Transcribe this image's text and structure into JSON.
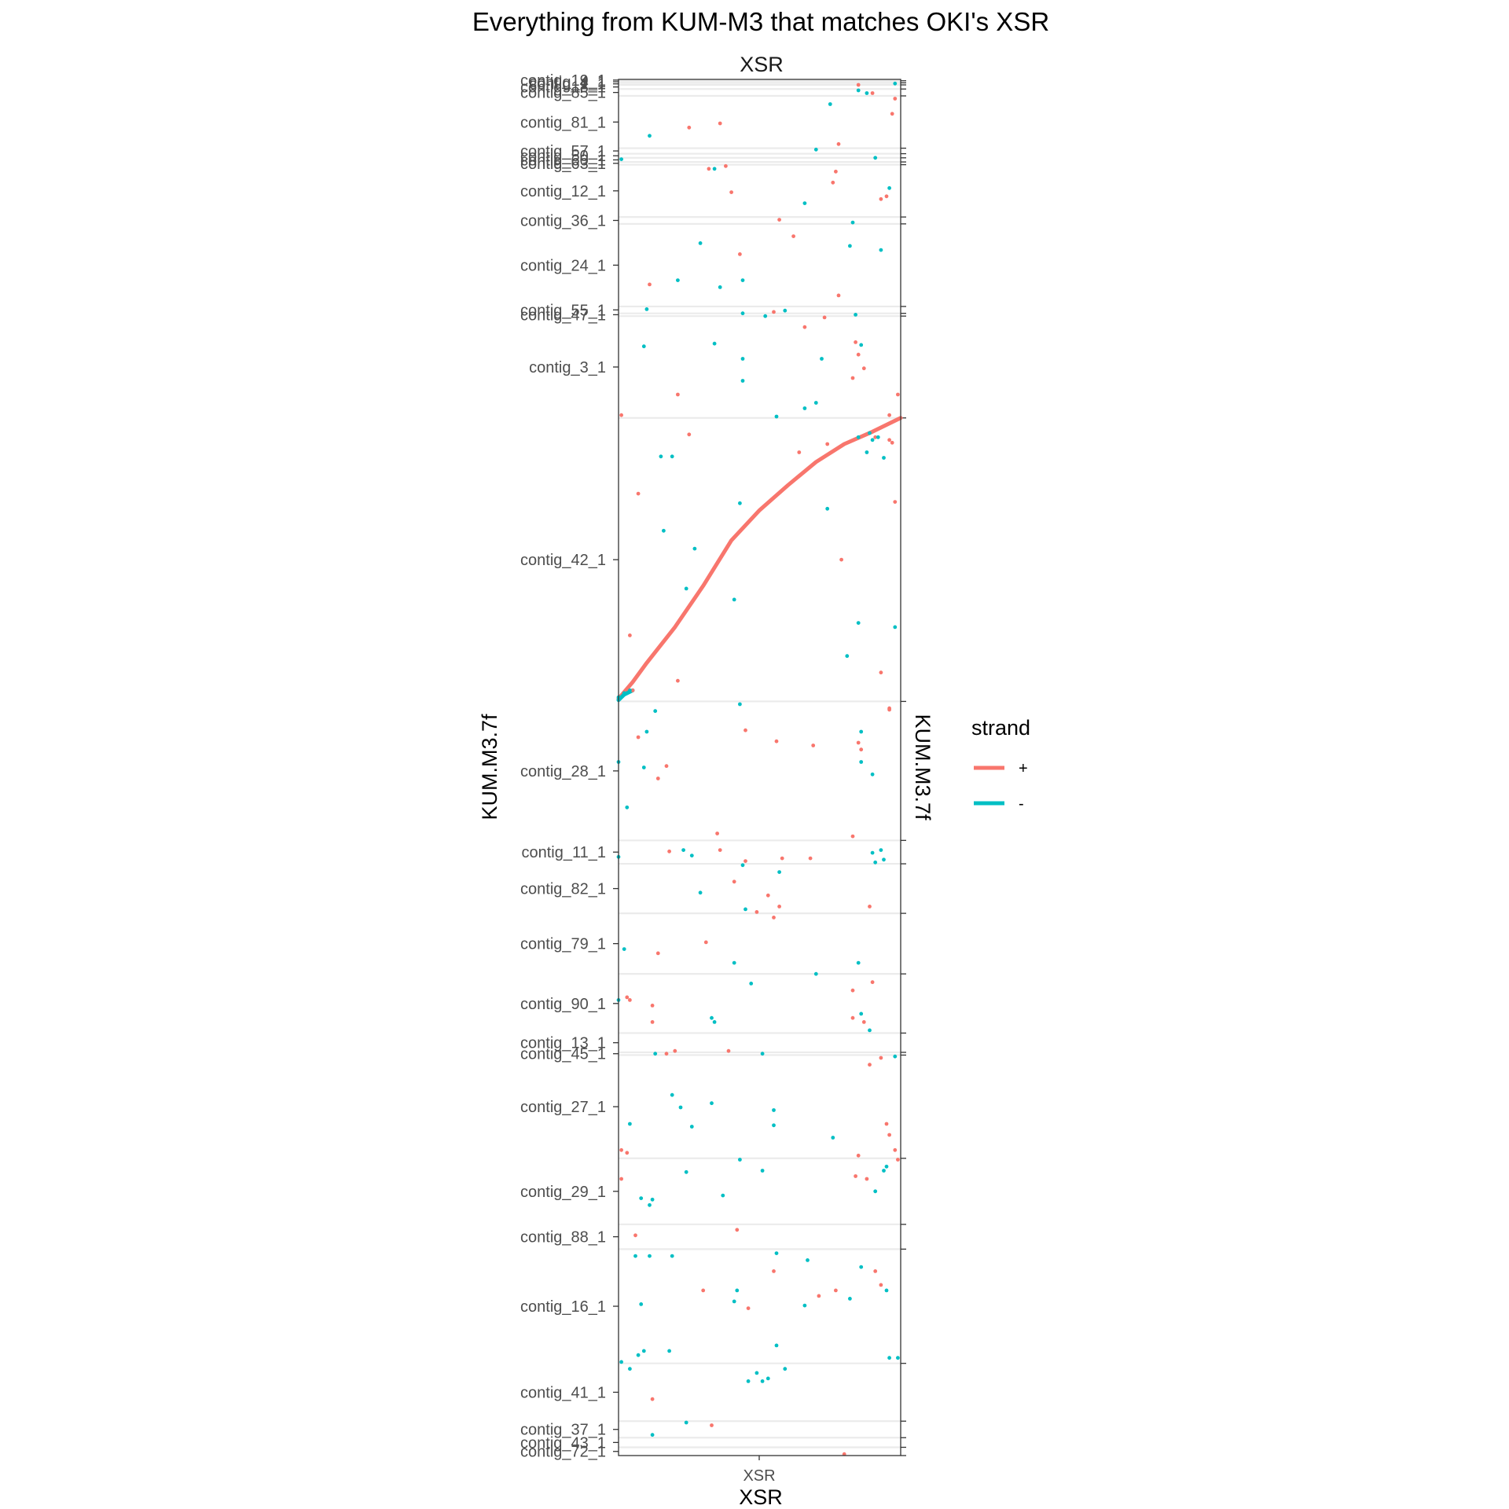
{
  "chart_data": {
    "type": "scatter",
    "title": "Everything from KUM-M3 that matches OKI's XSR",
    "facet_label": "XSR",
    "xlabel": "XSR",
    "x_tick_labels": [
      "XSR"
    ],
    "ylabel": "KUM.M3.7f",
    "ylabel_right": "KUM.M3.7f",
    "grid": "horizontal contig boundary lines",
    "legend": {
      "title": "strand",
      "position": "right",
      "entries": [
        {
          "label": "+",
          "color": "#F8766D"
        },
        {
          "label": "-",
          "color": "#00BFC4"
        }
      ]
    },
    "xlim": [
      0,
      1
    ],
    "ylim": [
      0,
      1
    ],
    "contigs": [
      {
        "name": "contig_19_1",
        "start": 0.0,
        "end": 0.001
      },
      {
        "name": "contig_4_1",
        "start": 0.001,
        "end": 0.0025
      },
      {
        "name": "contig_1_1",
        "start": 0.0025,
        "end": 0.004
      },
      {
        "name": "contig_18_1",
        "start": 0.004,
        "end": 0.007
      },
      {
        "name": "contig_85_1",
        "start": 0.007,
        "end": 0.012
      },
      {
        "name": "contig_81_1",
        "start": 0.012,
        "end": 0.05
      },
      {
        "name": "contig_57_1",
        "start": 0.05,
        "end": 0.054
      },
      {
        "name": "contig_50_1",
        "start": 0.054,
        "end": 0.057
      },
      {
        "name": "contig_60_1",
        "start": 0.057,
        "end": 0.06
      },
      {
        "name": "contig_63_1",
        "start": 0.06,
        "end": 0.062
      },
      {
        "name": "contig_12_1",
        "start": 0.062,
        "end": 0.1
      },
      {
        "name": "contig_36_1",
        "start": 0.1,
        "end": 0.105
      },
      {
        "name": "contig_24_1",
        "start": 0.105,
        "end": 0.165
      },
      {
        "name": "contig_55_1",
        "start": 0.165,
        "end": 0.17
      },
      {
        "name": "contig_47_1",
        "start": 0.17,
        "end": 0.172
      },
      {
        "name": "contig_3_1",
        "start": 0.172,
        "end": 0.246
      },
      {
        "name": "contig_42_1",
        "start": 0.246,
        "end": 0.452
      },
      {
        "name": "contig_28_1",
        "start": 0.452,
        "end": 0.553
      },
      {
        "name": "contig_11_1",
        "start": 0.553,
        "end": 0.57
      },
      {
        "name": "contig_82_1",
        "start": 0.57,
        "end": 0.606
      },
      {
        "name": "contig_79_1",
        "start": 0.606,
        "end": 0.65
      },
      {
        "name": "contig_90_1",
        "start": 0.65,
        "end": 0.693
      },
      {
        "name": "contig_13_1",
        "start": 0.693,
        "end": 0.707
      },
      {
        "name": "contig_45_1",
        "start": 0.707,
        "end": 0.709
      },
      {
        "name": "contig_27_1",
        "start": 0.709,
        "end": 0.784
      },
      {
        "name": "contig_29_1",
        "start": 0.784,
        "end": 0.832
      },
      {
        "name": "contig_88_1",
        "start": 0.832,
        "end": 0.85
      },
      {
        "name": "contig_16_1",
        "start": 0.85,
        "end": 0.933
      },
      {
        "name": "contig_41_1",
        "start": 0.933,
        "end": 0.975
      },
      {
        "name": "contig_37_1",
        "start": 0.975,
        "end": 0.987
      },
      {
        "name": "contig_43_1",
        "start": 0.987,
        "end": 0.994
      },
      {
        "name": "contig_72_1",
        "start": 0.994,
        "end": 1.0
      }
    ],
    "series": [
      {
        "name": "+",
        "line": [
          [
            0.0,
            0.45
          ],
          [
            0.05,
            0.438
          ],
          [
            0.1,
            0.424
          ],
          [
            0.2,
            0.398
          ],
          [
            0.3,
            0.368
          ],
          [
            0.4,
            0.335
          ],
          [
            0.5,
            0.313
          ],
          [
            0.6,
            0.295
          ],
          [
            0.7,
            0.278
          ],
          [
            0.8,
            0.265
          ],
          [
            0.9,
            0.256
          ],
          [
            1.0,
            0.246
          ]
        ],
        "points": [
          [
            0.85,
            0.004
          ],
          [
            0.9,
            0.01
          ],
          [
            0.98,
            0.014
          ],
          [
            0.97,
            0.025
          ],
          [
            0.25,
            0.035
          ],
          [
            0.36,
            0.032
          ],
          [
            0.78,
            0.047
          ],
          [
            0.38,
            0.063
          ],
          [
            0.32,
            0.065
          ],
          [
            0.77,
            0.067
          ],
          [
            0.76,
            0.075
          ],
          [
            0.4,
            0.082
          ],
          [
            0.93,
            0.087
          ],
          [
            0.95,
            0.085
          ],
          [
            0.57,
            0.102
          ],
          [
            0.62,
            0.114
          ],
          [
            0.43,
            0.127
          ],
          [
            0.11,
            0.149
          ],
          [
            0.78,
            0.157
          ],
          [
            0.55,
            0.169
          ],
          [
            0.73,
            0.173
          ],
          [
            0.66,
            0.18
          ],
          [
            0.84,
            0.191
          ],
          [
            0.85,
            0.2
          ],
          [
            0.87,
            0.21
          ],
          [
            0.83,
            0.217
          ],
          [
            0.21,
            0.229
          ],
          [
            0.99,
            0.229
          ],
          [
            0.01,
            0.244
          ],
          [
            0.96,
            0.244
          ],
          [
            0.25,
            0.258
          ],
          [
            0.74,
            0.265
          ],
          [
            0.64,
            0.271
          ],
          [
            0.91,
            0.26
          ],
          [
            0.96,
            0.262
          ],
          [
            0.97,
            0.264
          ],
          [
            0.07,
            0.301
          ],
          [
            0.98,
            0.307
          ],
          [
            0.79,
            0.349
          ],
          [
            0.04,
            0.404
          ],
          [
            0.93,
            0.431
          ],
          [
            0.21,
            0.437
          ],
          [
            0.05,
            0.444
          ],
          [
            0.96,
            0.457
          ],
          [
            0.45,
            0.473
          ],
          [
            0.56,
            0.481
          ],
          [
            0.69,
            0.484
          ],
          [
            0.85,
            0.482
          ],
          [
            0.07,
            0.478
          ],
          [
            0.96,
            0.458
          ],
          [
            0.17,
            0.499
          ],
          [
            0.14,
            0.508
          ],
          [
            0.86,
            0.487
          ],
          [
            0.35,
            0.548
          ],
          [
            0.83,
            0.55
          ],
          [
            0.18,
            0.561
          ],
          [
            0.36,
            0.56
          ],
          [
            0.58,
            0.566
          ],
          [
            0.68,
            0.566
          ],
          [
            0.45,
            0.568
          ],
          [
            0.41,
            0.583
          ],
          [
            0.53,
            0.593
          ],
          [
            0.57,
            0.601
          ],
          [
            0.49,
            0.605
          ],
          [
            0.55,
            0.609
          ],
          [
            0.89,
            0.601
          ],
          [
            0.31,
            0.627
          ],
          [
            0.14,
            0.635
          ],
          [
            0.03,
            0.667
          ],
          [
            0.04,
            0.669
          ],
          [
            0.12,
            0.673
          ],
          [
            0.83,
            0.662
          ],
          [
            0.9,
            0.656
          ],
          [
            0.12,
            0.685
          ],
          [
            0.87,
            0.685
          ],
          [
            0.83,
            0.682
          ],
          [
            0.2,
            0.706
          ],
          [
            0.39,
            0.706
          ],
          [
            0.17,
            0.708
          ],
          [
            0.93,
            0.711
          ],
          [
            0.89,
            0.716
          ],
          [
            0.95,
            0.759
          ],
          [
            0.01,
            0.778
          ],
          [
            0.03,
            0.78
          ],
          [
            0.98,
            0.778
          ],
          [
            0.96,
            0.767
          ],
          [
            0.99,
            0.785
          ],
          [
            0.85,
            0.782
          ],
          [
            0.84,
            0.797
          ],
          [
            0.88,
            0.799
          ],
          [
            0.01,
            0.799
          ],
          [
            0.42,
            0.836
          ],
          [
            0.06,
            0.84
          ],
          [
            0.55,
            0.866
          ],
          [
            0.91,
            0.866
          ],
          [
            0.93,
            0.876
          ],
          [
            0.77,
            0.88
          ],
          [
            0.71,
            0.884
          ],
          [
            0.3,
            0.88
          ],
          [
            0.46,
            0.893
          ],
          [
            0.12,
            0.959
          ],
          [
            0.33,
            0.978
          ],
          [
            0.8,
            0.999
          ]
        ]
      },
      {
        "name": "-",
        "line": [
          [
            0.0,
            0.451
          ],
          [
            0.02,
            0.447
          ],
          [
            0.05,
            0.444
          ]
        ],
        "points": [
          [
            0.98,
            0.003
          ],
          [
            0.85,
            0.008
          ],
          [
            0.88,
            0.01
          ],
          [
            0.75,
            0.018
          ],
          [
            0.11,
            0.041
          ],
          [
            0.7,
            0.051
          ],
          [
            0.91,
            0.057
          ],
          [
            0.01,
            0.058
          ],
          [
            0.34,
            0.065
          ],
          [
            0.96,
            0.079
          ],
          [
            0.66,
            0.09
          ],
          [
            0.83,
            0.104
          ],
          [
            0.29,
            0.119
          ],
          [
            0.82,
            0.121
          ],
          [
            0.93,
            0.124
          ],
          [
            0.21,
            0.146
          ],
          [
            0.44,
            0.146
          ],
          [
            0.36,
            0.151
          ],
          [
            0.1,
            0.167
          ],
          [
            0.44,
            0.17
          ],
          [
            0.59,
            0.168
          ],
          [
            0.52,
            0.172
          ],
          [
            0.84,
            0.171
          ],
          [
            0.34,
            0.192
          ],
          [
            0.09,
            0.194
          ],
          [
            0.44,
            0.203
          ],
          [
            0.72,
            0.203
          ],
          [
            0.86,
            0.193
          ],
          [
            0.44,
            0.219
          ],
          [
            0.7,
            0.235
          ],
          [
            0.66,
            0.239
          ],
          [
            0.56,
            0.245
          ],
          [
            0.92,
            0.26
          ],
          [
            0.89,
            0.257
          ],
          [
            0.88,
            0.271
          ],
          [
            0.9,
            0.262
          ],
          [
            0.19,
            0.274
          ],
          [
            0.15,
            0.274
          ],
          [
            0.94,
            0.275
          ],
          [
            0.85,
            0.26
          ],
          [
            0.43,
            0.308
          ],
          [
            0.74,
            0.312
          ],
          [
            0.16,
            0.328
          ],
          [
            0.27,
            0.341
          ],
          [
            0.24,
            0.37
          ],
          [
            0.41,
            0.378
          ],
          [
            0.85,
            0.395
          ],
          [
            0.98,
            0.398
          ],
          [
            0.81,
            0.419
          ],
          [
            0.0,
            0.449
          ],
          [
            0.02,
            0.446
          ],
          [
            0.04,
            0.444
          ],
          [
            0.43,
            0.454
          ],
          [
            0.13,
            0.459
          ],
          [
            0.1,
            0.474
          ],
          [
            0.0,
            0.496
          ],
          [
            0.09,
            0.5
          ],
          [
            0.86,
            0.474
          ],
          [
            0.86,
            0.496
          ],
          [
            0.9,
            0.505
          ],
          [
            0.03,
            0.529
          ],
          [
            0.23,
            0.56
          ],
          [
            0.26,
            0.564
          ],
          [
            0.93,
            0.56
          ],
          [
            0.9,
            0.562
          ],
          [
            0.94,
            0.567
          ],
          [
            0.91,
            0.569
          ],
          [
            0.44,
            0.571
          ],
          [
            0.0,
            0.565
          ],
          [
            0.57,
            0.576
          ],
          [
            0.29,
            0.591
          ],
          [
            0.45,
            0.603
          ],
          [
            0.02,
            0.632
          ],
          [
            0.41,
            0.642
          ],
          [
            0.7,
            0.65
          ],
          [
            0.85,
            0.642
          ],
          [
            0.47,
            0.657
          ],
          [
            0.0,
            0.669
          ],
          [
            0.33,
            0.682
          ],
          [
            0.34,
            0.685
          ],
          [
            0.86,
            0.679
          ],
          [
            0.89,
            0.691
          ],
          [
            0.13,
            0.708
          ],
          [
            0.51,
            0.708
          ],
          [
            0.98,
            0.71
          ],
          [
            0.19,
            0.738
          ],
          [
            0.22,
            0.747
          ],
          [
            0.33,
            0.744
          ],
          [
            0.55,
            0.749
          ],
          [
            0.55,
            0.76
          ],
          [
            0.04,
            0.759
          ],
          [
            0.26,
            0.761
          ],
          [
            0.76,
            0.769
          ],
          [
            0.43,
            0.785
          ],
          [
            0.51,
            0.793
          ],
          [
            0.24,
            0.794
          ],
          [
            0.94,
            0.793
          ],
          [
            0.95,
            0.79
          ],
          [
            0.91,
            0.808
          ],
          [
            0.37,
            0.811
          ],
          [
            0.08,
            0.813
          ],
          [
            0.12,
            0.814
          ],
          [
            0.11,
            0.818
          ],
          [
            0.06,
            0.855
          ],
          [
            0.11,
            0.855
          ],
          [
            0.19,
            0.855
          ],
          [
            0.56,
            0.853
          ],
          [
            0.67,
            0.858
          ],
          [
            0.86,
            0.863
          ],
          [
            0.42,
            0.88
          ],
          [
            0.41,
            0.888
          ],
          [
            0.66,
            0.891
          ],
          [
            0.82,
            0.886
          ],
          [
            0.08,
            0.89
          ],
          [
            0.95,
            0.88
          ],
          [
            0.09,
            0.924
          ],
          [
            0.18,
            0.924
          ],
          [
            0.56,
            0.92
          ],
          [
            0.01,
            0.932
          ],
          [
            0.04,
            0.937
          ],
          [
            0.07,
            0.927
          ],
          [
            0.49,
            0.94
          ],
          [
            0.53,
            0.944
          ],
          [
            0.46,
            0.946
          ],
          [
            0.51,
            0.946
          ],
          [
            0.59,
            0.937
          ],
          [
            0.96,
            0.929
          ],
          [
            0.99,
            0.929
          ],
          [
            0.24,
            0.976
          ],
          [
            0.12,
            0.985
          ]
        ]
      }
    ]
  }
}
